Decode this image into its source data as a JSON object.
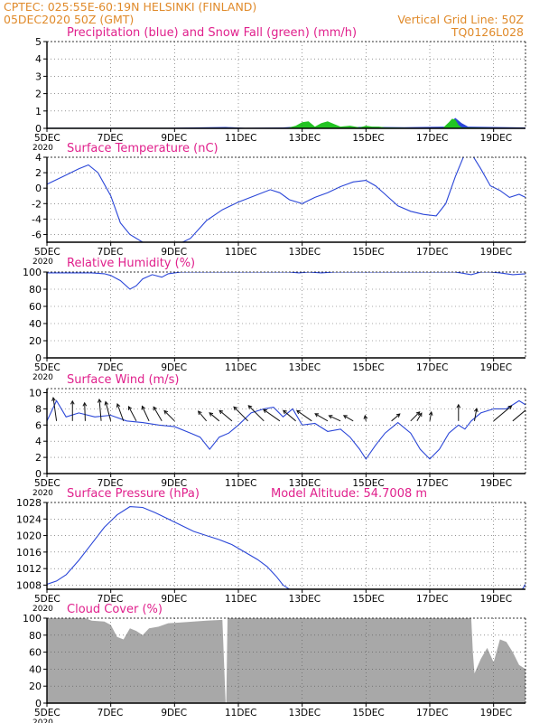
{
  "header": {
    "line1_left": "CPTEC:  025:55E-60:19N  HELSINKI (FINLAND)",
    "line2_left": "05DEC2020 50Z (GMT)",
    "line1_right": "Vertical Grid Line: 50Z",
    "line2_right": "TQ0126L028"
  },
  "colors": {
    "header": "#e08a2a",
    "panel_title": "#e0208c",
    "series_line": "#2a46d8",
    "snow_fill": "#22c422",
    "precip_fill": "#2a46d8",
    "cloud_fill": "#a8a8a8",
    "axis": "#000000"
  },
  "x_axis": {
    "start": "05DEC2020",
    "end": "20DEC2020",
    "ticks": [
      {
        "day": 5,
        "label": "5DEC"
      },
      {
        "day": 7,
        "label": "7DEC"
      },
      {
        "day": 9,
        "label": "9DEC"
      },
      {
        "day": 11,
        "label": "11DEC"
      },
      {
        "day": 13,
        "label": "13DEC"
      },
      {
        "day": 15,
        "label": "15DEC"
      },
      {
        "day": 17,
        "label": "17DEC"
      },
      {
        "day": 19,
        "label": "19DEC"
      }
    ],
    "corner_label": "2020"
  },
  "chart_data": [
    {
      "type": "area",
      "id": "precip",
      "title": "Precipitation (blue) and Snow Fall (green) (mm/h)",
      "ylim": [
        0,
        5
      ],
      "yticks": [
        0,
        1,
        2,
        3,
        4,
        5
      ],
      "grid": true,
      "series": [
        {
          "name": "Precipitation (blue)",
          "x": [
            5,
            8.8,
            10.6,
            11.2,
            12.4,
            12.8,
            13.1,
            13.4,
            13.7,
            14.0,
            14.4,
            15.0,
            15.5,
            16.2,
            17.5,
            17.7,
            17.8,
            18.0,
            18.2,
            20
          ],
          "values": [
            0.03,
            0.03,
            0.08,
            0.03,
            0.05,
            0.1,
            0.15,
            0.05,
            0.2,
            0.1,
            0.05,
            0.1,
            0.08,
            0.06,
            0.1,
            0.45,
            0.6,
            0.3,
            0.1,
            0.05
          ]
        },
        {
          "name": "Snow Fall (green)",
          "x": [
            5,
            12.5,
            12.8,
            13.0,
            13.2,
            13.4,
            13.6,
            13.8,
            14.0,
            14.2,
            14.5,
            14.8,
            15.0,
            15.2,
            15.4,
            15.6,
            17.4,
            17.6,
            17.7,
            17.8,
            17.9,
            18.0,
            20
          ],
          "values": [
            0,
            0,
            0.15,
            0.35,
            0.4,
            0.1,
            0.3,
            0.4,
            0.25,
            0.1,
            0.15,
            0.05,
            0.15,
            0.1,
            0.1,
            0.05,
            0,
            0.35,
            0.55,
            0.5,
            0.2,
            0.05,
            0
          ]
        }
      ]
    },
    {
      "type": "line",
      "id": "temperature",
      "title": "Surface Temperature (nC)",
      "ylim": [
        -7,
        4
      ],
      "yticks": [
        4,
        2,
        0,
        -2,
        -4,
        -6
      ],
      "grid": true,
      "series": [
        {
          "name": "Surface Temperature",
          "x": [
            5,
            5.5,
            6.0,
            6.3,
            6.6,
            7.0,
            7.3,
            7.6,
            8.0,
            8.5,
            9.0,
            9.5,
            10.0,
            10.5,
            11.0,
            11.5,
            12.0,
            12.3,
            12.6,
            13.0,
            13.4,
            13.8,
            14.2,
            14.6,
            15.0,
            15.3,
            15.6,
            16.0,
            16.4,
            16.8,
            17.2,
            17.5,
            17.8,
            18.1,
            18.3,
            18.6,
            18.9,
            19.2,
            19.5,
            19.8,
            20.0
          ],
          "values": [
            0.5,
            1.5,
            2.5,
            3.0,
            2.0,
            -1.0,
            -4.5,
            -6.0,
            -7.0,
            -7.8,
            -7.5,
            -6.5,
            -4.2,
            -2.8,
            -1.8,
            -1.0,
            -0.2,
            -0.6,
            -1.5,
            -2.0,
            -1.2,
            -0.6,
            0.2,
            0.8,
            1.0,
            0.3,
            -0.8,
            -2.3,
            -3.0,
            -3.4,
            -3.6,
            -2.0,
            1.5,
            4.5,
            4.5,
            2.5,
            0.3,
            -0.3,
            -1.2,
            -0.8,
            -1.2
          ]
        }
      ]
    },
    {
      "type": "line",
      "id": "humidity",
      "title": "Relative Humidity (%)",
      "ylim": [
        0,
        100
      ],
      "yticks": [
        100,
        80,
        60,
        40,
        20,
        0
      ],
      "grid": true,
      "series": [
        {
          "name": "Relative Humidity",
          "x": [
            5,
            6.4,
            6.8,
            7.0,
            7.3,
            7.6,
            7.8,
            8.0,
            8.3,
            8.6,
            8.8,
            9.2,
            12.6,
            12.9,
            13.2,
            13.6,
            14.0,
            14.4,
            17.8,
            18.3,
            18.6,
            18.9,
            19.2,
            19.6,
            20.0
          ],
          "values": [
            99,
            99,
            98,
            96,
            90,
            80,
            84,
            92,
            97,
            94,
            98,
            100,
            100,
            99,
            100,
            99,
            100,
            100,
            100,
            97,
            100,
            100,
            99,
            97,
            98
          ]
        }
      ]
    },
    {
      "type": "line",
      "id": "wind",
      "title": "Surface Wind (m/s)",
      "ylim": [
        0,
        10.5
      ],
      "yticks": [
        10,
        8,
        6,
        4,
        2,
        0
      ],
      "grid": true,
      "series": [
        {
          "name": "Surface Wind",
          "x": [
            5,
            5.3,
            5.6,
            6.0,
            6.5,
            7.0,
            7.5,
            8.0,
            8.5,
            9.0,
            9.5,
            9.8,
            10.1,
            10.4,
            10.7,
            11.0,
            11.4,
            11.8,
            12.1,
            12.4,
            12.7,
            13.0,
            13.4,
            13.8,
            14.2,
            14.5,
            14.8,
            15.0,
            15.3,
            15.6,
            16.0,
            16.4,
            16.7,
            17.0,
            17.3,
            17.6,
            17.9,
            18.1,
            18.3,
            18.6,
            19.0,
            19.4,
            19.8,
            20.0
          ],
          "values": [
            6.5,
            9.0,
            7.0,
            7.5,
            7.0,
            7.2,
            6.5,
            6.3,
            6.0,
            5.8,
            5.0,
            4.5,
            3.0,
            4.5,
            5.0,
            6.0,
            7.5,
            8.0,
            8.2,
            7.0,
            8.0,
            6.0,
            6.2,
            5.2,
            5.5,
            4.5,
            3.0,
            1.8,
            3.5,
            5.0,
            6.3,
            5.0,
            3.0,
            1.8,
            3.0,
            5.0,
            6.0,
            5.5,
            6.5,
            7.5,
            8.0,
            8.0,
            9.0,
            8.5
          ]
        }
      ],
      "vectors": [
        {
          "x": 5.3,
          "angle": -98,
          "length": 26
        },
        {
          "x": 5.8,
          "angle": -90,
          "length": 22
        },
        {
          "x": 6.2,
          "angle": -92,
          "length": 20
        },
        {
          "x": 6.7,
          "angle": -95,
          "length": 24
        },
        {
          "x": 7.0,
          "angle": -105,
          "length": 22
        },
        {
          "x": 7.4,
          "angle": -110,
          "length": 20
        },
        {
          "x": 7.8,
          "angle": -118,
          "length": 18
        },
        {
          "x": 8.2,
          "angle": -115,
          "length": 18
        },
        {
          "x": 8.6,
          "angle": -120,
          "length": 18
        },
        {
          "x": 9.0,
          "angle": -135,
          "length": 16
        },
        {
          "x": 10.0,
          "angle": -130,
          "length": 14
        },
        {
          "x": 10.4,
          "angle": -140,
          "length": 14
        },
        {
          "x": 10.8,
          "angle": -140,
          "length": 18
        },
        {
          "x": 11.3,
          "angle": -135,
          "length": 22
        },
        {
          "x": 11.8,
          "angle": -135,
          "length": 24
        },
        {
          "x": 12.3,
          "angle": -145,
          "length": 22
        },
        {
          "x": 12.8,
          "angle": -140,
          "length": 18
        },
        {
          "x": 13.3,
          "angle": -145,
          "length": 20
        },
        {
          "x": 13.8,
          "angle": -150,
          "length": 16
        },
        {
          "x": 14.2,
          "angle": -155,
          "length": 14
        },
        {
          "x": 14.6,
          "angle": -150,
          "length": 12
        },
        {
          "x": 15.0,
          "angle": -100,
          "length": 6
        },
        {
          "x": 15.8,
          "angle": -40,
          "length": 12
        },
        {
          "x": 16.4,
          "angle": -45,
          "length": 14
        },
        {
          "x": 16.6,
          "angle": -60,
          "length": 10
        },
        {
          "x": 17.0,
          "angle": -80,
          "length": 10
        },
        {
          "x": 17.9,
          "angle": -90,
          "length": 18
        },
        {
          "x": 18.4,
          "angle": -80,
          "length": 14
        },
        {
          "x": 19.0,
          "angle": -40,
          "length": 26
        },
        {
          "x": 19.6,
          "angle": -40,
          "length": 26
        }
      ]
    },
    {
      "type": "line",
      "id": "pressure",
      "title": "Surface Pressure (hPa)",
      "subtitle": "Model Altitude: 54.7008 m",
      "ylim": [
        1007,
        1028
      ],
      "yticks": [
        1028,
        1024,
        1020,
        1016,
        1012,
        1008
      ],
      "grid": true,
      "series": [
        {
          "name": "Surface Pressure",
          "x": [
            5,
            5.3,
            5.6,
            6.0,
            6.4,
            6.8,
            7.2,
            7.6,
            8.0,
            8.4,
            8.8,
            9.2,
            9.6,
            10.0,
            10.4,
            10.8,
            11.2,
            11.6,
            11.9,
            12.2,
            12.4,
            12.6
          ],
          "values": [
            1008.2,
            1009.0,
            1010.5,
            1014.0,
            1018.0,
            1022.0,
            1025.0,
            1027.0,
            1026.8,
            1025.5,
            1024.0,
            1022.5,
            1021.0,
            1020.0,
            1019.0,
            1017.8,
            1016.0,
            1014.2,
            1012.5,
            1010.0,
            1008.0,
            1007.0
          ]
        },
        {
          "name": "Surface Pressure (late)",
          "x": [
            19.9,
            20.0
          ],
          "values": [
            1007.0,
            1008.2
          ]
        }
      ]
    },
    {
      "type": "area",
      "id": "cloud",
      "title": "Cloud Cover (%)",
      "ylim": [
        0,
        100
      ],
      "yticks": [
        100,
        80,
        60,
        40,
        20,
        0
      ],
      "grid": true,
      "series": [
        {
          "name": "Cloud Cover",
          "x": [
            5,
            6.2,
            6.4,
            6.8,
            7.0,
            7.2,
            7.4,
            7.6,
            7.8,
            8.0,
            8.2,
            8.5,
            8.8,
            9.2,
            9.6,
            10.0,
            10.5,
            10.6,
            10.62,
            10.66,
            10.7,
            11.0,
            18.3,
            18.35,
            18.4,
            18.6,
            18.8,
            19.0,
            19.2,
            19.4,
            19.6,
            19.8,
            20.0
          ],
          "values": [
            100,
            100,
            97,
            96,
            92,
            78,
            75,
            88,
            85,
            80,
            88,
            90,
            94,
            95,
            96,
            97,
            98,
            0,
            0,
            100,
            100,
            100,
            100,
            60,
            35,
            52,
            65,
            48,
            75,
            72,
            60,
            45,
            40
          ]
        }
      ]
    }
  ]
}
